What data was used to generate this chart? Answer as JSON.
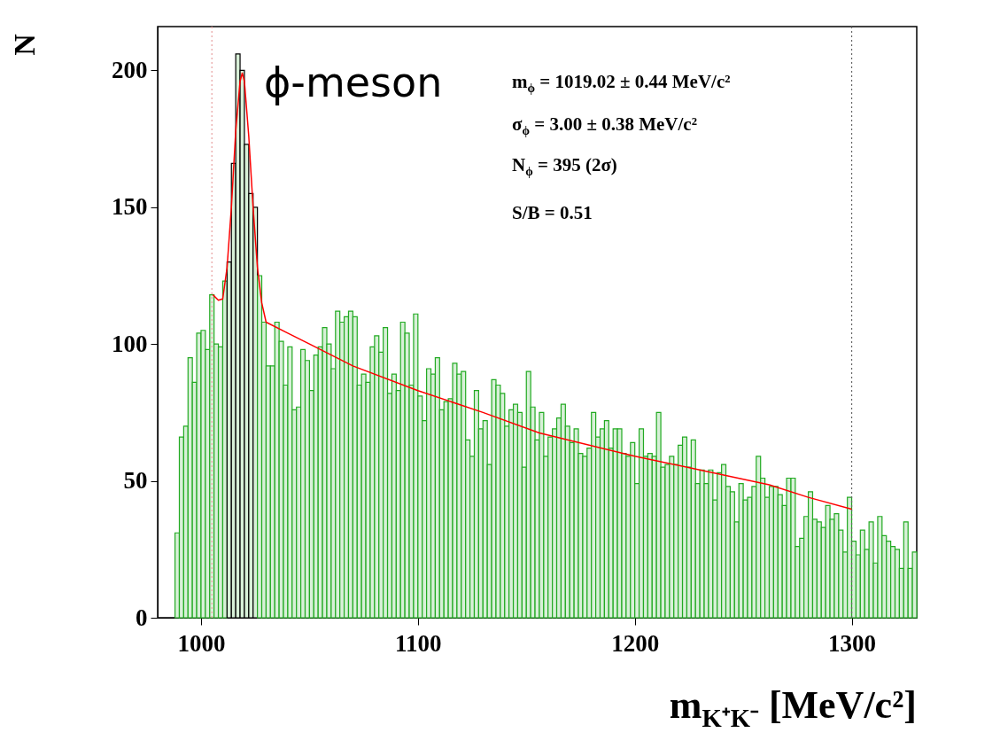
{
  "chart_data": {
    "type": "histogram",
    "xlabel": "m$_{K⁺K⁻}$  [MeV/c²]",
    "ylabel": "N",
    "bins": [
      988,
      990,
      992,
      994,
      996,
      998,
      1000,
      1002,
      1004,
      1006,
      1008,
      1010,
      1012,
      1014,
      1016,
      1018,
      1020,
      1022,
      1024,
      1026,
      1028,
      1030,
      1032,
      1034,
      1036,
      1038,
      1040,
      1042,
      1044,
      1046,
      1048,
      1050,
      1052,
      1054,
      1056,
      1058,
      1060,
      1062,
      1064,
      1066,
      1068,
      1070,
      1072,
      1074,
      1076,
      1078,
      1080,
      1082,
      1084,
      1086,
      1088,
      1090,
      1092,
      1094,
      1096,
      1098,
      1100,
      1102,
      1104,
      1106,
      1108,
      1110,
      1112,
      1114,
      1116,
      1118,
      1120,
      1122,
      1124,
      1126,
      1128,
      1130,
      1132,
      1134,
      1136,
      1138,
      1140,
      1142,
      1144,
      1146,
      1148,
      1150,
      1152,
      1154,
      1156,
      1158,
      1160,
      1162,
      1164,
      1166,
      1168,
      1170,
      1172,
      1174,
      1176,
      1178,
      1180,
      1182,
      1184,
      1186,
      1188,
      1190,
      1192,
      1194,
      1196,
      1198,
      1200,
      1202,
      1204,
      1206,
      1208,
      1210,
      1212,
      1214,
      1216,
      1218,
      1220,
      1222,
      1224,
      1226,
      1228,
      1230,
      1232,
      1234,
      1236,
      1238,
      1240,
      1242,
      1244,
      1246,
      1248,
      1250,
      1252,
      1254,
      1256,
      1258,
      1260,
      1262,
      1264,
      1266,
      1268,
      1270,
      1272,
      1274,
      1276,
      1278,
      1280,
      1282,
      1284,
      1286,
      1288,
      1290,
      1292,
      1294,
      1296,
      1298,
      1300,
      1302,
      1304,
      1306,
      1308,
      1310,
      1312,
      1314,
      1316,
      1318,
      1320,
      1322,
      1324,
      1326,
      1328,
      1330
    ],
    "values": [
      31,
      66,
      70,
      95,
      86,
      104,
      105,
      98,
      118,
      100,
      99,
      123,
      130,
      166,
      206,
      200,
      173,
      155,
      150,
      125,
      108,
      92,
      92,
      108,
      101,
      85,
      99,
      76,
      77,
      98,
      94,
      83,
      96,
      99,
      106,
      100,
      91,
      112,
      108,
      110,
      112,
      110,
      85,
      89,
      86,
      99,
      103,
      97,
      106,
      82,
      89,
      83,
      108,
      104,
      85,
      111,
      81,
      72,
      91,
      89,
      95,
      76,
      79,
      80,
      93,
      89,
      90,
      65,
      59,
      83,
      69,
      72,
      56,
      87,
      85,
      82,
      70,
      76,
      78,
      75,
      55,
      90,
      77,
      65,
      75,
      59,
      66,
      69,
      73,
      78,
      70,
      64,
      69,
      60,
      59,
      62,
      75,
      66,
      69,
      72,
      62,
      69,
      69,
      60,
      59,
      64,
      49,
      69,
      59,
      60,
      59,
      75,
      55,
      56,
      59,
      56,
      63,
      66,
      55,
      65,
      49,
      54,
      49,
      54,
      43,
      53,
      56,
      48,
      46,
      35,
      49,
      43,
      44,
      48,
      59,
      51,
      44,
      48,
      48,
      45,
      41,
      51,
      51,
      26,
      29,
      37,
      46,
      36,
      35,
      33,
      41,
      36,
      38,
      32,
      24,
      44,
      28,
      23,
      32,
      25,
      35,
      20,
      37,
      30,
      28,
      26,
      25,
      18,
      35,
      18,
      24
    ],
    "colors": [
      "#22aa22",
      "#22aa22",
      "#22aa22",
      "#22aa22",
      "#22aa22",
      "#22aa22",
      "#22aa22",
      "#22aa22",
      "#22aa22",
      "#22aa22",
      "#22aa22",
      "#22aa22",
      "#000000",
      "#000000",
      "#000000",
      "#000000",
      "#000000",
      "#000000",
      "#000000",
      "#22aa22",
      "#22aa22",
      "#22aa22",
      "#22aa22",
      "#22aa22",
      "#22aa22",
      "#22aa22",
      "#22aa22",
      "#22aa22",
      "#22aa22",
      "#22aa22",
      "#22aa22",
      "#22aa22",
      "#22aa22",
      "#22aa22",
      "#22aa22",
      "#22aa22",
      "#22aa22",
      "#22aa22",
      "#22aa22",
      "#22aa22",
      "#22aa22",
      "#22aa22",
      "#22aa22",
      "#22aa22",
      "#22aa22",
      "#22aa22",
      "#22aa22",
      "#22aa22",
      "#22aa22",
      "#22aa22",
      "#22aa22",
      "#22aa22",
      "#22aa22",
      "#22aa22",
      "#22aa22",
      "#22aa22",
      "#22aa22",
      "#22aa22",
      "#22aa22",
      "#22aa22",
      "#22aa22",
      "#22aa22",
      "#22aa22",
      "#22aa22",
      "#22aa22",
      "#22aa22",
      "#22aa22",
      "#22aa22",
      "#22aa22",
      "#22aa22",
      "#22aa22",
      "#22aa22",
      "#22aa22",
      "#22aa22",
      "#22aa22",
      "#22aa22",
      "#22aa22",
      "#22aa22",
      "#22aa22",
      "#22aa22",
      "#22aa22",
      "#22aa22",
      "#22aa22",
      "#22aa22",
      "#22aa22",
      "#22aa22",
      "#22aa22",
      "#22aa22",
      "#22aa22",
      "#22aa22",
      "#22aa22",
      "#22aa22",
      "#22aa22",
      "#22aa22",
      "#22aa22",
      "#22aa22",
      "#22aa22",
      "#22aa22",
      "#22aa22",
      "#22aa22",
      "#22aa22",
      "#22aa22",
      "#22aa22",
      "#22aa22",
      "#22aa22",
      "#22aa22",
      "#22aa22",
      "#22aa22",
      "#22aa22",
      "#22aa22",
      "#22aa22",
      "#22aa22",
      "#22aa22",
      "#22aa22",
      "#22aa22",
      "#22aa22",
      "#22aa22",
      "#22aa22",
      "#22aa22",
      "#22aa22",
      "#22aa22",
      "#22aa22",
      "#22aa22",
      "#22aa22",
      "#22aa22",
      "#22aa22",
      "#22aa22",
      "#22aa22",
      "#22aa22",
      "#22aa22",
      "#22aa22",
      "#22aa22",
      "#22aa22",
      "#22aa22",
      "#22aa22",
      "#22aa22",
      "#22aa22",
      "#22aa22",
      "#22aa22",
      "#22aa22",
      "#22aa22",
      "#22aa22",
      "#22aa22",
      "#22aa22",
      "#22aa22",
      "#22aa22",
      "#22aa22",
      "#22aa22",
      "#22aa22",
      "#22aa22",
      "#22aa22",
      "#22aa22",
      "#22aa22",
      "#22aa22",
      "#22aa22",
      "#22aa22",
      "#22aa22",
      "#22aa22",
      "#22aa22",
      "#22aa22",
      "#22aa22",
      "#22aa22",
      "#22aa22",
      "#22aa22",
      "#22aa22",
      "#22aa22",
      "#22aa22",
      "#22aa22",
      "#22aa22",
      "#22aa22",
      "#22aa22"
    ],
    "series": [
      {
        "type": "line",
        "color": "#ff0000",
        "x": [
          1005.5,
          1008,
          1010,
          1012,
          1014,
          1016,
          1018,
          1019,
          1020,
          1022,
          1024,
          1026,
          1028,
          1030,
          1040,
          1050,
          1070,
          1100,
          1130,
          1156,
          1200,
          1230,
          1262,
          1280,
          1300
        ],
        "values": [
          118,
          116,
          116.5,
          128,
          150,
          178,
          196,
          199,
          196,
          176,
          150,
          128,
          115,
          108,
          104,
          100,
          92,
          83,
          75,
          67.5,
          59,
          54,
          48.6,
          44,
          39.7
        ]
      }
    ],
    "xlim": [
      980,
      1330
    ],
    "xticks": [
      1000,
      1100,
      1200,
      1300
    ],
    "ylim": [
      0,
      216
    ],
    "yticks": [
      0,
      50,
      100,
      150,
      200
    ],
    "grid": false,
    "ref_lines": [
      {
        "axis": "x",
        "value": 1005,
        "color": "#e8a0a0",
        "line_style": "dotted"
      },
      {
        "axis": "x",
        "value": 1300,
        "color": "#666666",
        "line_style": "dotted"
      }
    ],
    "annotations": [
      "ϕ-meson",
      "m$_{ϕ}$ = 1019.02 ±  0.44  MeV/c²",
      "σ$_{ϕ}$ = 3.00 ±  0.38  MeV/c²",
      "N$_{ϕ}$ = 395   (2σ)",
      "S/B = 0.51"
    ]
  }
}
